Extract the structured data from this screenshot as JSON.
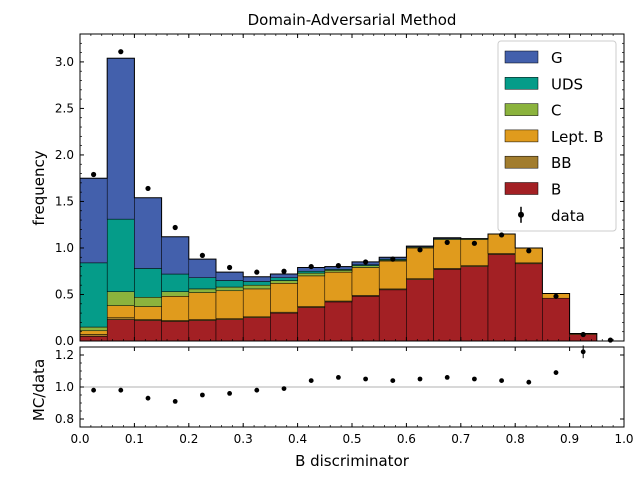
{
  "chart_data": {
    "type": "bar",
    "stacked": true,
    "histogram": true,
    "title": "Domain-Adversarial Method",
    "xlabel": "B discriminator",
    "ylabel": "frequency",
    "ratio_ylabel": "MC/data",
    "xlim": [
      0.0,
      1.0
    ],
    "ylim": [
      0.0,
      3.3
    ],
    "ratio_ylim": [
      0.75,
      1.25
    ],
    "bin_edges": [
      0.0,
      0.05,
      0.1,
      0.15,
      0.2,
      0.25,
      0.3,
      0.35,
      0.4,
      0.45,
      0.5,
      0.55,
      0.6,
      0.65,
      0.7,
      0.75,
      0.8,
      0.85,
      0.9,
      0.95,
      1.0
    ],
    "x_ticks": [
      "0.0",
      "0.1",
      "0.2",
      "0.3",
      "0.4",
      "0.5",
      "0.6",
      "0.7",
      "0.8",
      "0.9",
      "1.0"
    ],
    "y_ticks": [
      "0.0",
      "0.5",
      "1.0",
      "1.5",
      "2.0",
      "2.5",
      "3.0"
    ],
    "ratio_y_ticks": [
      "0.8",
      "1.0",
      "1.2"
    ],
    "legend_position": "top-right",
    "series": [
      {
        "name": "B",
        "color": "#a32024",
        "values": [
          0.05,
          0.23,
          0.22,
          0.21,
          0.22,
          0.23,
          0.25,
          0.3,
          0.36,
          0.42,
          0.48,
          0.55,
          0.66,
          0.77,
          0.8,
          0.93,
          0.83,
          0.46,
          0.07,
          0.0
        ]
      },
      {
        "name": "BB",
        "color": "#a27d2e",
        "values": [
          0.02,
          0.02,
          0.01,
          0.01,
          0.01,
          0.01,
          0.01,
          0.01,
          0.01,
          0.01,
          0.01,
          0.01,
          0.01,
          0.01,
          0.01,
          0.01,
          0.01,
          0.0,
          0.0,
          0.0
        ]
      },
      {
        "name": "Lept. B",
        "color": "#e09b1d",
        "values": [
          0.04,
          0.13,
          0.14,
          0.26,
          0.29,
          0.3,
          0.3,
          0.31,
          0.33,
          0.31,
          0.3,
          0.3,
          0.33,
          0.31,
          0.28,
          0.21,
          0.16,
          0.05,
          0.01,
          0.0
        ]
      },
      {
        "name": "C",
        "color": "#8bb33d",
        "values": [
          0.04,
          0.15,
          0.1,
          0.05,
          0.04,
          0.04,
          0.04,
          0.03,
          0.03,
          0.02,
          0.02,
          0.01,
          0.01,
          0.01,
          0.01,
          0.0,
          0.0,
          0.0,
          0.0,
          0.0
        ]
      },
      {
        "name": "UDS",
        "color": "#059c89",
        "values": [
          0.69,
          0.78,
          0.31,
          0.19,
          0.12,
          0.07,
          0.04,
          0.03,
          0.02,
          0.01,
          0.01,
          0.01,
          0.0,
          0.0,
          0.0,
          0.0,
          0.0,
          0.0,
          0.0,
          0.0
        ]
      },
      {
        "name": "G",
        "color": "#4360ac",
        "values": [
          0.91,
          1.73,
          0.76,
          0.4,
          0.2,
          0.09,
          0.05,
          0.04,
          0.04,
          0.03,
          0.03,
          0.02,
          0.01,
          0.01,
          0.0,
          0.0,
          0.0,
          0.0,
          0.0,
          0.0
        ]
      }
    ],
    "data": {
      "name": "data",
      "x": [
        0.025,
        0.075,
        0.125,
        0.175,
        0.225,
        0.275,
        0.325,
        0.375,
        0.425,
        0.475,
        0.525,
        0.575,
        0.625,
        0.675,
        0.725,
        0.775,
        0.825,
        0.875,
        0.925,
        0.975
      ],
      "y": [
        1.79,
        3.11,
        1.64,
        1.22,
        0.92,
        0.79,
        0.74,
        0.75,
        0.8,
        0.81,
        0.85,
        0.88,
        0.98,
        1.06,
        1.05,
        1.14,
        0.97,
        0.48,
        0.07,
        0.01
      ]
    },
    "ratio": {
      "x": [
        0.025,
        0.075,
        0.125,
        0.175,
        0.225,
        0.275,
        0.325,
        0.375,
        0.425,
        0.475,
        0.525,
        0.575,
        0.625,
        0.675,
        0.725,
        0.775,
        0.825,
        0.875,
        0.925
      ],
      "y": [
        0.98,
        0.98,
        0.93,
        0.91,
        0.95,
        0.96,
        0.98,
        0.99,
        1.04,
        1.06,
        1.05,
        1.04,
        1.05,
        1.06,
        1.05,
        1.04,
        1.03,
        1.09,
        1.22
      ],
      "err": [
        0,
        0,
        0,
        0,
        0,
        0.01,
        0,
        0,
        0.01,
        0,
        0,
        0.01,
        0,
        0,
        0,
        0,
        0,
        0.015,
        0.04
      ]
    }
  }
}
